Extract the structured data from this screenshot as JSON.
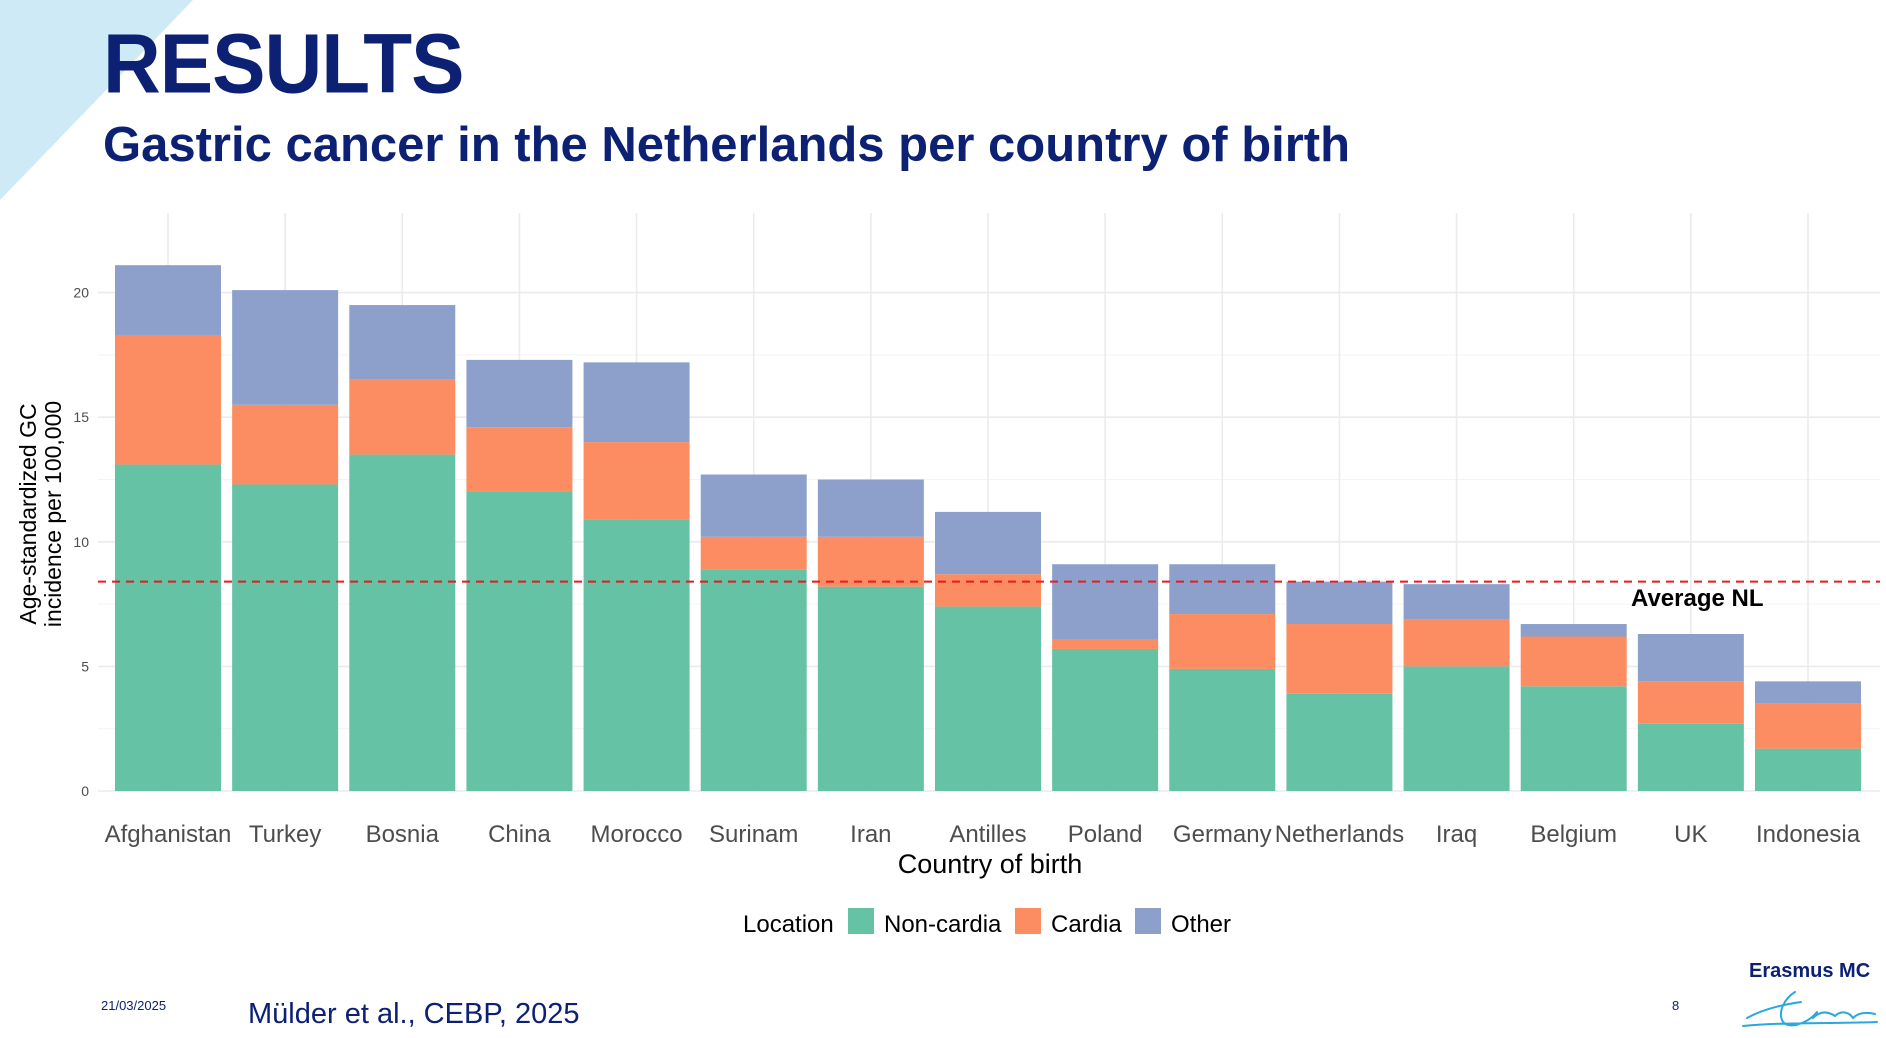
{
  "slide": {
    "title": "RESULTS",
    "subtitle": "Gastric cancer in the Netherlands per country of birth",
    "date": "21/03/2025",
    "citation": "Mülder et al., CEBP, 2025",
    "page_number": "8",
    "logo_text": "Erasmus MC",
    "colors": {
      "title": "#0c2074",
      "corner_accent": "#cdeaf6",
      "reference_line": "#e8191f"
    }
  },
  "chart_data": {
    "type": "bar",
    "stacked": true,
    "xlabel": "Country of birth",
    "ylabel": "Age-standardized GC\nincidence per 100,000",
    "ylim": [
      0,
      22
    ],
    "yticks": [
      0,
      5,
      10,
      15,
      20
    ],
    "grid": true,
    "legend": {
      "title": "Location",
      "position": "bottom"
    },
    "categories": [
      "Afghanistan",
      "Turkey",
      "Bosnia",
      "China",
      "Morocco",
      "Surinam",
      "Iran",
      "Antilles",
      "Poland",
      "Germany",
      "Netherlands",
      "Iraq",
      "Belgium",
      "UK",
      "Indonesia"
    ],
    "series": [
      {
        "name": "Non-cardia",
        "color": "#66c2a5",
        "values": [
          13.1,
          12.3,
          13.5,
          12.0,
          10.9,
          8.9,
          8.2,
          7.4,
          5.7,
          4.9,
          3.9,
          5.0,
          4.2,
          2.7,
          1.7
        ]
      },
      {
        "name": "Cardia",
        "color": "#fc8d62",
        "values": [
          5.2,
          3.2,
          3.0,
          2.6,
          3.1,
          1.3,
          2.0,
          1.3,
          0.4,
          2.2,
          2.8,
          1.9,
          2.0,
          1.7,
          1.8
        ]
      },
      {
        "name": "Other",
        "color": "#8da0cb",
        "values": [
          2.8,
          4.6,
          3.0,
          2.7,
          3.2,
          2.5,
          2.3,
          2.5,
          3.0,
          2.0,
          1.7,
          1.4,
          0.5,
          1.9,
          0.9
        ]
      }
    ],
    "reference_line": {
      "label": "Average NL",
      "value": 8.4,
      "style": "dashed"
    }
  }
}
